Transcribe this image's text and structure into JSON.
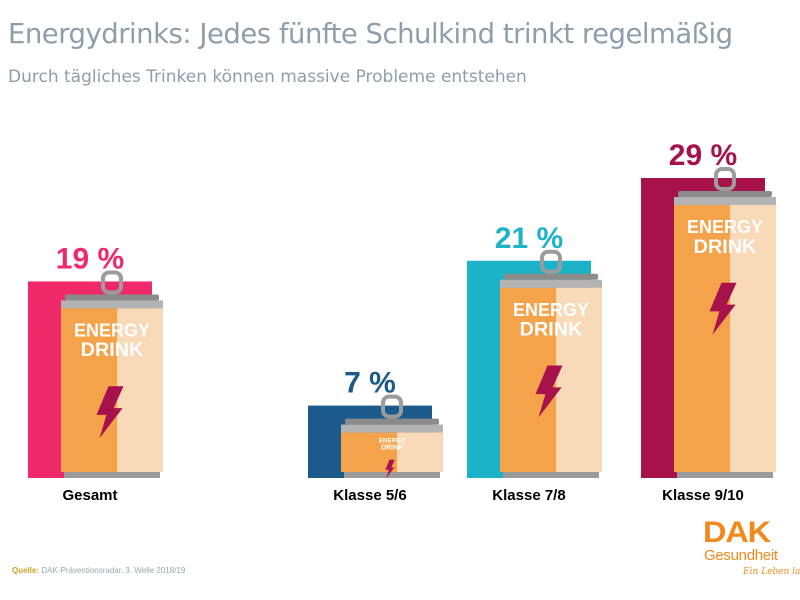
{
  "title": "Energydrinks: Jedes fünfte Schulkind trinkt regelmäßig",
  "subtitle": "Durch tägliches Trinken können massive Probleme entstehen",
  "source": {
    "label": "Quelle:",
    "text": "DAK-Präventionsradar, 3. Welle 2018/19"
  },
  "logo": {
    "brand": "DAK",
    "sub": "Gesundheit",
    "tagline": "Ein Leben lang"
  },
  "can_text": {
    "line1": "ENERGY",
    "line2": "DRINK"
  },
  "chart_data": {
    "type": "bar",
    "categories": [
      "Gesamt",
      "Klasse 5/6",
      "Klasse 7/8",
      "Klasse 9/10"
    ],
    "values": [
      19,
      7,
      21,
      29
    ],
    "value_labels": [
      "19 %",
      "7 %",
      "21 %",
      "29 %"
    ],
    "colors": [
      "#f0296a",
      "#1b5a8a",
      "#1cb3c8",
      "#a8124c"
    ],
    "unit": "%",
    "title": "Energydrinks: Jedes fünfte Schulkind trinkt regelmäßig",
    "xlabel": "",
    "ylabel": "",
    "grid": false,
    "legend": "none"
  }
}
